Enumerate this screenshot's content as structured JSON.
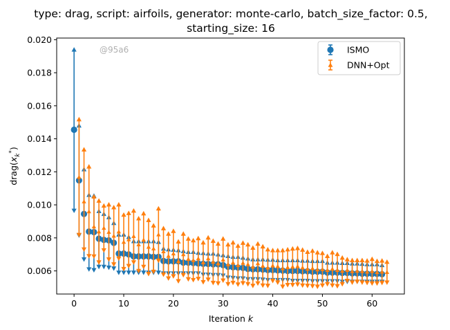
{
  "chart_data": {
    "type": "scatter",
    "title_line1": "type: drag, script: airfoils, generator: monte-carlo, batch_size_factor: 0.5,",
    "title_line2": "starting_size: 16",
    "xlabel_prefix": "Iteration ",
    "xlabel_var": "k",
    "ylabel": "drag(x_k^*)",
    "watermark": "@95a6",
    "xlim": [
      -3.5,
      66.5
    ],
    "ylim": [
      0.0046,
      0.0201
    ],
    "xticks": [
      0,
      10,
      20,
      30,
      40,
      50,
      60
    ],
    "yticks": [
      0.006,
      0.008,
      0.01,
      0.012,
      0.014,
      0.016,
      0.018,
      0.02
    ],
    "ytick_labels": [
      "0.006",
      "0.008",
      "0.010",
      "0.012",
      "0.014",
      "0.016",
      "0.018",
      "0.020"
    ],
    "legend_position": "upper right",
    "series": [
      {
        "name": "ISMO",
        "color": "#1f77b4",
        "marker": "circle",
        "x": [
          0,
          1,
          2,
          3,
          4,
          5,
          6,
          7,
          8,
          9,
          10,
          11,
          12,
          13,
          14,
          15,
          16,
          17,
          18,
          19,
          20,
          21,
          22,
          23,
          24,
          25,
          26,
          27,
          28,
          29,
          30,
          31,
          32,
          33,
          34,
          35,
          36,
          37,
          38,
          39,
          40,
          41,
          42,
          43,
          44,
          45,
          46,
          47,
          48,
          49,
          50,
          51,
          52,
          53,
          54,
          55,
          56,
          57,
          58,
          59,
          60,
          61,
          62
        ],
        "y": [
          0.01455,
          0.01148,
          0.00945,
          0.00838,
          0.00835,
          0.00795,
          0.00788,
          0.00785,
          0.0077,
          0.00705,
          0.00705,
          0.007,
          0.00688,
          0.00688,
          0.00688,
          0.00688,
          0.00685,
          0.00685,
          0.0066,
          0.00658,
          0.00658,
          0.00658,
          0.0065,
          0.0065,
          0.00648,
          0.00645,
          0.00643,
          0.00642,
          0.0064,
          0.0064,
          0.00635,
          0.00625,
          0.00622,
          0.0062,
          0.00618,
          0.00612,
          0.0061,
          0.0061,
          0.00608,
          0.00605,
          0.00605,
          0.00603,
          0.00602,
          0.006,
          0.006,
          0.006,
          0.00598,
          0.00598,
          0.00595,
          0.00595,
          0.00595,
          0.0059,
          0.0059,
          0.0059,
          0.00588,
          0.00588,
          0.00585,
          0.00585,
          0.00583,
          0.00583,
          0.00582,
          0.00582,
          0.0058
        ],
        "upper": [
          0.0194,
          0.0148,
          0.01215,
          0.0106,
          0.01055,
          0.00962,
          0.00945,
          0.00925,
          0.0089,
          0.0082,
          0.0082,
          0.00805,
          0.0078,
          0.0078,
          0.0078,
          0.0078,
          0.0078,
          0.00775,
          0.00735,
          0.0073,
          0.00728,
          0.00725,
          0.0072,
          0.00715,
          0.00715,
          0.0071,
          0.00708,
          0.00705,
          0.00705,
          0.007,
          0.00695,
          0.0069,
          0.00685,
          0.00685,
          0.0068,
          0.00675,
          0.0067,
          0.0067,
          0.0067,
          0.00668,
          0.00668,
          0.00665,
          0.00665,
          0.00665,
          0.00665,
          0.00665,
          0.00662,
          0.00662,
          0.0066,
          0.0066,
          0.0066,
          0.0065,
          0.0065,
          0.0065,
          0.00648,
          0.00648,
          0.00645,
          0.00645,
          0.00643,
          0.0064,
          0.0064,
          0.0064,
          0.00635
        ],
        "lower": [
          0.00965,
          0.00815,
          0.0067,
          0.0061,
          0.00605,
          0.00625,
          0.00625,
          0.0062,
          0.00615,
          0.0059,
          0.0059,
          0.0059,
          0.0059,
          0.0059,
          0.0059,
          0.0059,
          0.0059,
          0.0059,
          0.00585,
          0.00585,
          0.00585,
          0.00585,
          0.00585,
          0.00585,
          0.00585,
          0.00585,
          0.00578,
          0.00578,
          0.00575,
          0.00575,
          0.00572,
          0.0056,
          0.00558,
          0.00555,
          0.00555,
          0.0055,
          0.0055,
          0.0055,
          0.00548,
          0.00545,
          0.00545,
          0.00545,
          0.00545,
          0.00545,
          0.0054,
          0.0054,
          0.0054,
          0.0054,
          0.00538,
          0.00538,
          0.00538,
          0.00538,
          0.00538,
          0.00538,
          0.00535,
          0.00535,
          0.00535,
          0.00535,
          0.00535,
          0.00535,
          0.00535,
          0.00535,
          0.00535
        ]
      },
      {
        "name": "DNN+Opt",
        "color": "#ff7f0e",
        "marker": "triangle",
        "x": [
          1,
          2,
          3,
          4,
          5,
          6,
          7,
          8,
          9,
          10,
          11,
          12,
          13,
          14,
          15,
          16,
          17,
          18,
          19,
          20,
          21,
          22,
          23,
          24,
          25,
          26,
          27,
          28,
          29,
          30,
          31,
          32,
          33,
          34,
          35,
          36,
          37,
          38,
          39,
          40,
          41,
          42,
          43,
          44,
          45,
          46,
          47,
          48,
          49,
          50,
          51,
          52,
          53,
          54,
          55,
          56,
          57,
          58,
          59,
          60,
          61,
          62,
          63
        ],
        "y": [
          0.01168,
          0.0102,
          0.0096,
          0.00868,
          0.00838,
          0.0086,
          0.00835,
          0.00812,
          0.00838,
          0.00775,
          0.0079,
          0.0081,
          0.0076,
          0.00788,
          0.00745,
          0.00735,
          0.0082,
          0.00718,
          0.0069,
          0.00705,
          0.00658,
          0.007,
          0.00672,
          0.00665,
          0.00675,
          0.00652,
          0.00675,
          0.00655,
          0.00645,
          0.00668,
          0.0064,
          0.0065,
          0.00635,
          0.00648,
          0.0064,
          0.00625,
          0.00645,
          0.0063,
          0.0062,
          0.00632,
          0.00628,
          0.00615,
          0.00622,
          0.00625,
          0.00628,
          0.0062,
          0.00612,
          0.00615,
          0.00608,
          0.0061,
          0.00605,
          0.00612,
          0.00605,
          0.006,
          0.00605,
          0.00598,
          0.006,
          0.00598,
          0.00595,
          0.00598,
          0.00592,
          0.00595,
          0.00592
        ],
        "upper": [
          0.01518,
          0.01335,
          0.01232,
          0.0105,
          0.01025,
          0.00995,
          0.01002,
          0.00985,
          0.01002,
          0.0094,
          0.0095,
          0.00965,
          0.00918,
          0.00948,
          0.00908,
          0.00875,
          0.00978,
          0.00858,
          0.00825,
          0.00842,
          0.00778,
          0.00825,
          0.00795,
          0.00785,
          0.00798,
          0.00772,
          0.00802,
          0.00782,
          0.00765,
          0.00795,
          0.0076,
          0.00772,
          0.00752,
          0.0077,
          0.0076,
          0.0074,
          0.00765,
          0.00748,
          0.0073,
          0.00725,
          0.00725,
          0.00725,
          0.0073,
          0.00735,
          0.00738,
          0.00728,
          0.00715,
          0.00722,
          0.00712,
          0.00708,
          0.0069,
          0.00712,
          0.00702,
          0.0068,
          0.0067,
          0.00665,
          0.00665,
          0.00665,
          0.00662,
          0.00672,
          0.0066,
          0.00662,
          0.00655
        ],
        "lower": [
          0.00818,
          0.0073,
          0.0069,
          0.00688,
          0.00652,
          0.00725,
          0.0067,
          0.0064,
          0.00675,
          0.00612,
          0.0063,
          0.00652,
          0.006,
          0.00625,
          0.00582,
          0.00595,
          0.00662,
          0.00578,
          0.00555,
          0.00568,
          0.00538,
          0.00575,
          0.0055,
          0.00545,
          0.00552,
          0.00532,
          0.00548,
          0.00528,
          0.00525,
          0.00542,
          0.0052,
          0.00528,
          0.00518,
          0.00526,
          0.0052,
          0.0051,
          0.00525,
          0.00512,
          0.0051,
          0.0054,
          0.0053,
          0.00505,
          0.00515,
          0.00515,
          0.00518,
          0.00512,
          0.0051,
          0.00508,
          0.00505,
          0.00512,
          0.0052,
          0.00512,
          0.00508,
          0.0052,
          0.0054,
          0.0053,
          0.00535,
          0.0053,
          0.00528,
          0.00525,
          0.00525,
          0.00528,
          0.0053
        ]
      }
    ]
  }
}
